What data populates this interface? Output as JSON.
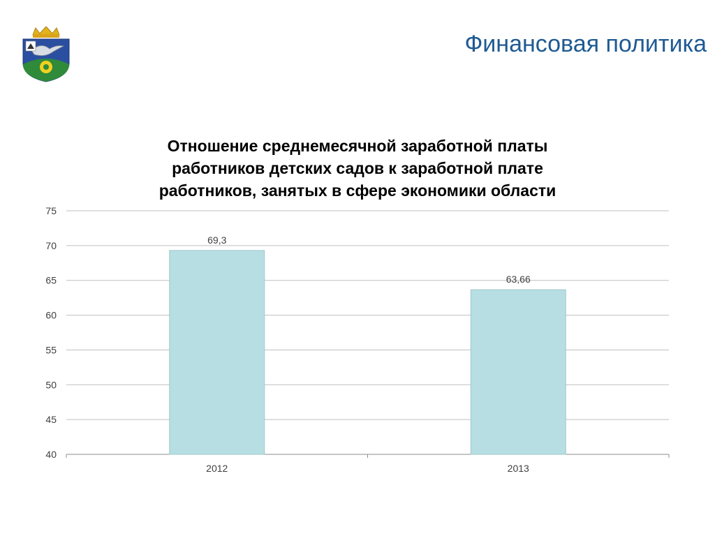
{
  "header": {
    "title": "Финансовая политика",
    "emblem_icon": "coat-of-arms-icon"
  },
  "chart_data": {
    "type": "bar",
    "title_lines": [
      "Отношение среднемесячной заработной платы",
      "работников детских садов к заработной плате",
      "работников, занятых в сфере экономики области"
    ],
    "categories": [
      "2012",
      "2013"
    ],
    "values": [
      69.3,
      63.66
    ],
    "value_labels": [
      "69,3",
      "63,66"
    ],
    "ylim": [
      40,
      75
    ],
    "yticks": [
      40,
      45,
      50,
      55,
      60,
      65,
      70,
      75
    ],
    "grid": true,
    "legend": "none",
    "bar_color": "#b7dfe3"
  }
}
